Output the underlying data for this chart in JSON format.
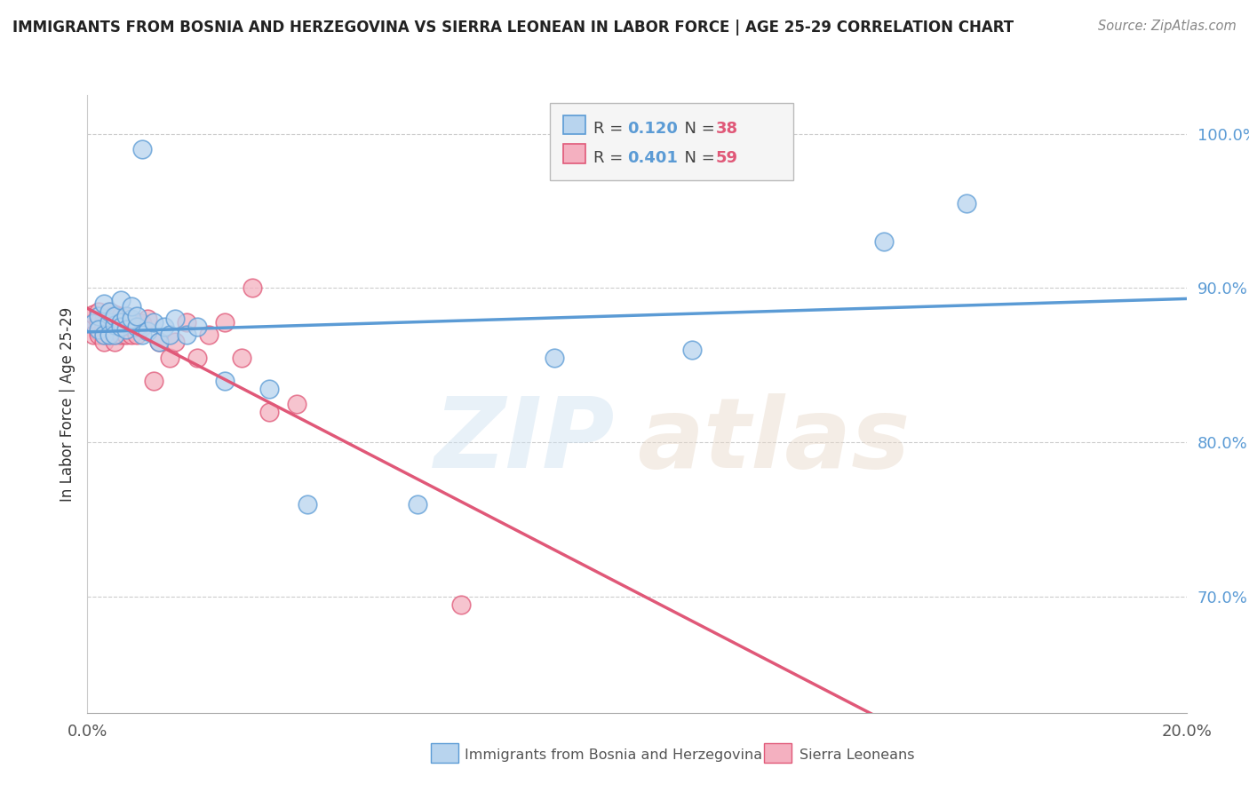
{
  "title": "IMMIGRANTS FROM BOSNIA AND HERZEGOVINA VS SIERRA LEONEAN IN LABOR FORCE | AGE 25-29 CORRELATION CHART",
  "source": "Source: ZipAtlas.com",
  "ylabel": "In Labor Force | Age 25-29",
  "y_ticks": [
    0.7,
    0.8,
    0.9,
    1.0
  ],
  "y_tick_labels": [
    "70.0%",
    "80.0%",
    "90.0%",
    "100.0%"
  ],
  "xlim": [
    0.0,
    0.2
  ],
  "ylim": [
    0.625,
    1.025
  ],
  "legend_bosnia_R": "0.120",
  "legend_bosnia_N": "38",
  "legend_sierra_R": "0.401",
  "legend_sierra_N": "59",
  "color_bosnia_fill": "#b8d4ee",
  "color_bosnia_edge": "#5b9bd5",
  "color_sierra_fill": "#f4b0c0",
  "color_sierra_edge": "#e05878",
  "color_bosnia_line": "#5b9bd5",
  "color_sierra_line": "#e05878",
  "color_ytick": "#5b9bd5",
  "bosnia_x": [
    0.001,
    0.002,
    0.002,
    0.003,
    0.003,
    0.004,
    0.004,
    0.004,
    0.005,
    0.005,
    0.005,
    0.006,
    0.006,
    0.006,
    0.007,
    0.007,
    0.008,
    0.008,
    0.009,
    0.009,
    0.01,
    0.01,
    0.011,
    0.012,
    0.013,
    0.014,
    0.015,
    0.016,
    0.018,
    0.02,
    0.025,
    0.033,
    0.04,
    0.06,
    0.085,
    0.11,
    0.145,
    0.16
  ],
  "bosnia_y": [
    0.877,
    0.882,
    0.873,
    0.89,
    0.87,
    0.878,
    0.885,
    0.87,
    0.876,
    0.882,
    0.87,
    0.878,
    0.892,
    0.875,
    0.882,
    0.873,
    0.88,
    0.888,
    0.875,
    0.882,
    0.99,
    0.87,
    0.872,
    0.878,
    0.865,
    0.875,
    0.87,
    0.88,
    0.87,
    0.875,
    0.84,
    0.835,
    0.76,
    0.76,
    0.855,
    0.86,
    0.93,
    0.955
  ],
  "sierra_x": [
    0.001,
    0.001,
    0.001,
    0.002,
    0.002,
    0.002,
    0.002,
    0.002,
    0.003,
    0.003,
    0.003,
    0.003,
    0.003,
    0.003,
    0.004,
    0.004,
    0.004,
    0.004,
    0.004,
    0.004,
    0.004,
    0.005,
    0.005,
    0.005,
    0.005,
    0.005,
    0.005,
    0.005,
    0.005,
    0.006,
    0.006,
    0.006,
    0.006,
    0.006,
    0.007,
    0.007,
    0.007,
    0.007,
    0.008,
    0.008,
    0.008,
    0.009,
    0.009,
    0.01,
    0.01,
    0.011,
    0.012,
    0.013,
    0.015,
    0.016,
    0.018,
    0.02,
    0.022,
    0.025,
    0.028,
    0.03,
    0.033,
    0.038,
    0.068
  ],
  "sierra_y": [
    0.878,
    0.87,
    0.883,
    0.872,
    0.878,
    0.885,
    0.878,
    0.87,
    0.873,
    0.88,
    0.877,
    0.875,
    0.87,
    0.865,
    0.878,
    0.882,
    0.873,
    0.878,
    0.87,
    0.877,
    0.885,
    0.875,
    0.87,
    0.878,
    0.883,
    0.871,
    0.877,
    0.865,
    0.873,
    0.87,
    0.877,
    0.878,
    0.882,
    0.875,
    0.875,
    0.87,
    0.877,
    0.882,
    0.87,
    0.875,
    0.878,
    0.87,
    0.878,
    0.875,
    0.877,
    0.88,
    0.84,
    0.865,
    0.855,
    0.865,
    0.878,
    0.855,
    0.87,
    0.878,
    0.855,
    0.9,
    0.82,
    0.825,
    0.695
  ]
}
